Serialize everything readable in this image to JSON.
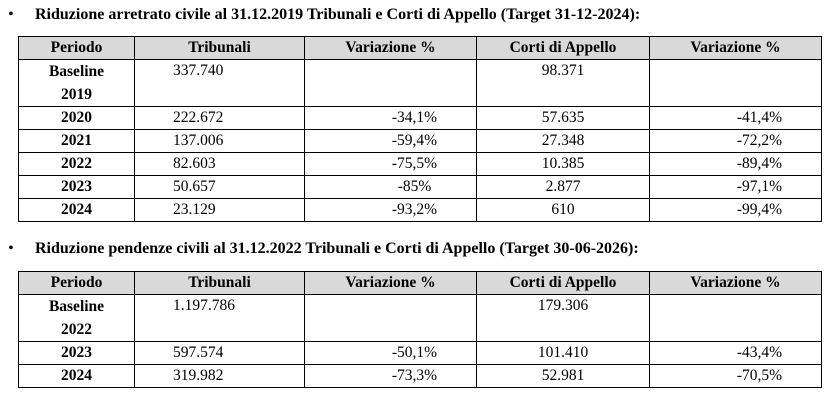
{
  "sections": [
    {
      "title": "Riduzione arretrato civile al 31.12.2019 Tribunali e Corti di Appello (Target 31-12-2024):",
      "bullet": "•",
      "headers": [
        "Periodo",
        "Tribunali",
        "Variazione %",
        "Corti di Appello",
        "Variazione %"
      ],
      "baseline": {
        "label_line1": "Baseline",
        "label_line2": "2019",
        "tribunali": "337.740",
        "corti": "98.371"
      },
      "rows": [
        {
          "period": "2020",
          "tribunali": "222.672",
          "var_trib": "-34,1%",
          "corti": "57.635",
          "var_corti": "-41,4%"
        },
        {
          "period": "2021",
          "tribunali": "137.006",
          "var_trib": "-59,4%",
          "corti": "27.348",
          "var_corti": "-72,2%"
        },
        {
          "period": "2022",
          "tribunali": "82.603",
          "var_trib": "-75,5%",
          "corti": "10.385",
          "var_corti": "-89,4%"
        },
        {
          "period": "2023",
          "tribunali": "50.657",
          "var_trib": "-85%",
          "corti": "2.877",
          "var_corti": "-97,1%"
        },
        {
          "period": "2024",
          "tribunali": "23.129",
          "var_trib": "-93,2%",
          "corti": "610",
          "var_corti": "-99,4%"
        }
      ]
    },
    {
      "title": "Riduzione pendenze civili al 31.12.2022 Tribunali e Corti di Appello (Target 30-06-2026):",
      "bullet": "•",
      "headers": [
        "Periodo",
        "Tribunali",
        "Variazione %",
        "Corti di Appello",
        "Variazione %"
      ],
      "baseline": {
        "label_line1": "Baseline",
        "label_line2": "2022",
        "tribunali": "1.197.786",
        "corti": "179.306"
      },
      "rows": [
        {
          "period": "2023",
          "tribunali": "597.574",
          "var_trib": "-50,1%",
          "corti": "101.410",
          "var_corti": "-43,4%"
        },
        {
          "period": "2024",
          "tribunali": "319.982",
          "var_trib": "-73,3%",
          "corti": "52.981",
          "var_corti": "-70,5%"
        }
      ]
    }
  ]
}
